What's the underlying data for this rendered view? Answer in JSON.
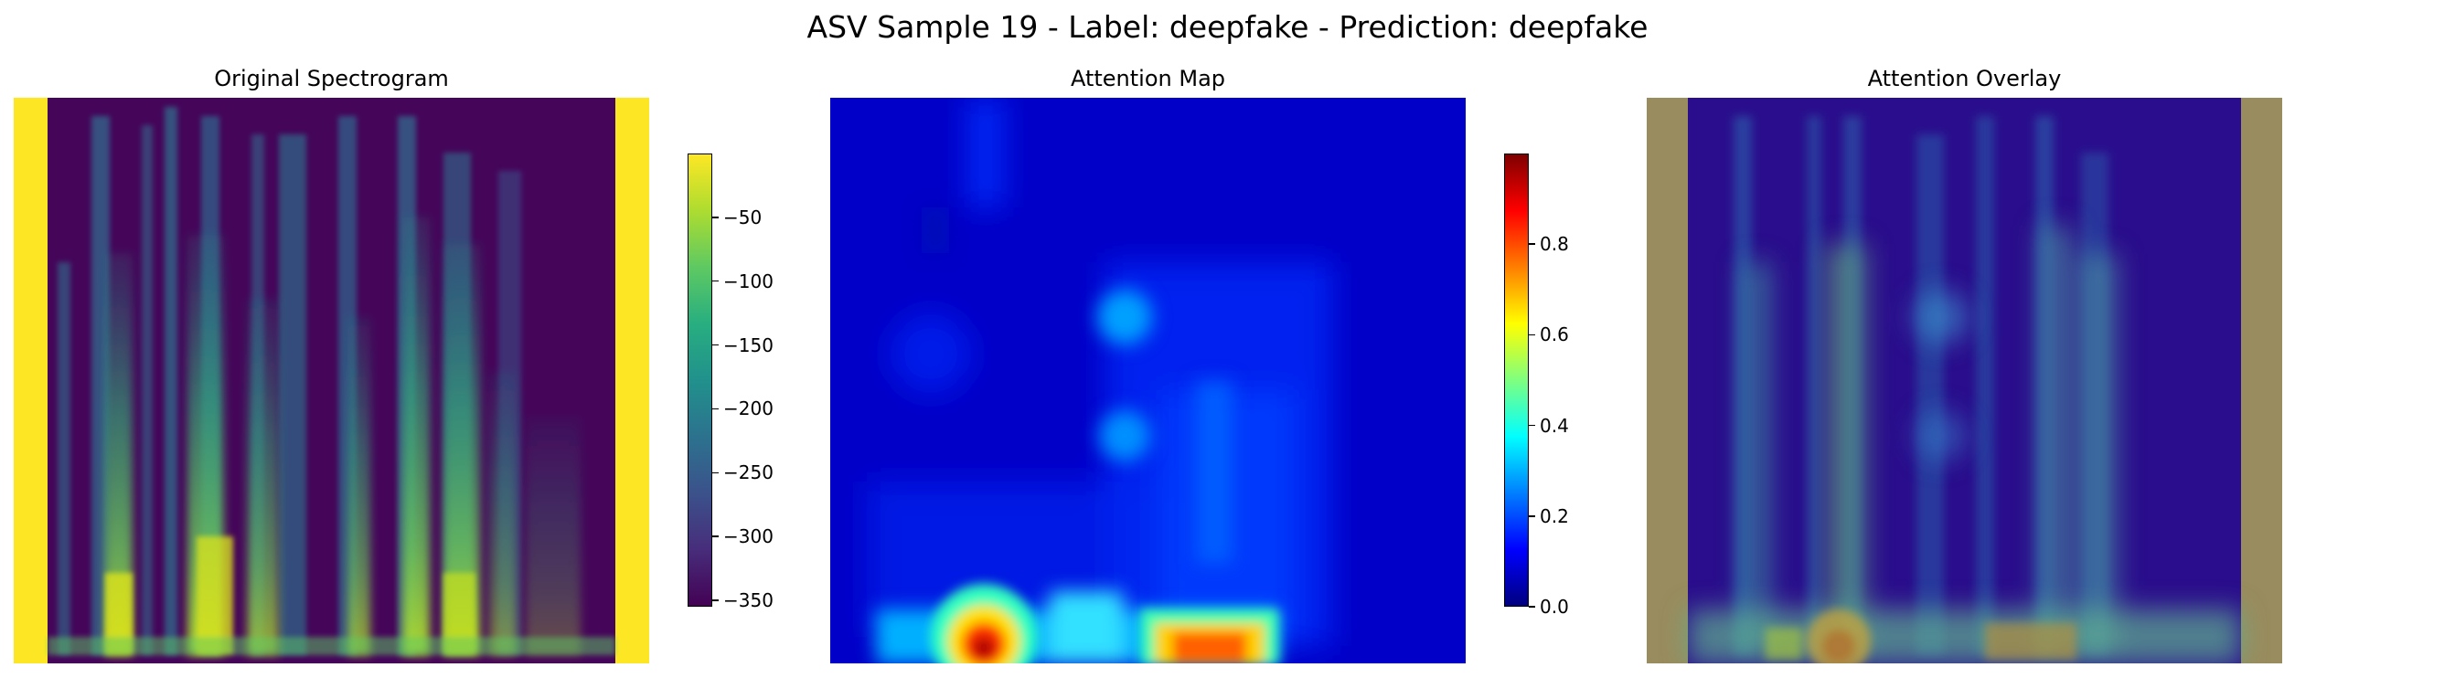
{
  "chart_data": [
    {
      "type": "heatmap",
      "title": "Original Spectrogram",
      "axes": "off",
      "colormap": "viridis",
      "colorbar": {
        "range": [
          -355,
          0
        ],
        "ticks": [
          -50,
          -100,
          -150,
          -200,
          -250,
          -300,
          -350
        ],
        "tick_labels": [
          "−50",
          "−100",
          "−150",
          "−200",
          "−250",
          "−300",
          "−350"
        ]
      }
    },
    {
      "type": "heatmap",
      "title": "Attention Map",
      "axes": "off",
      "colormap": "jet",
      "colorbar": {
        "range": [
          0.0,
          1.0
        ],
        "ticks": [
          0.8,
          0.6,
          0.4,
          0.2,
          0.0
        ],
        "tick_labels": [
          "0.8",
          "0.6",
          "0.4",
          "0.2",
          "0.0"
        ]
      }
    },
    {
      "type": "heatmap",
      "title": "Attention Overlay",
      "axes": "off",
      "colormap": "viridis + jet overlay"
    }
  ],
  "suptitle": "ASV Sample 19 - Label: deepfake - Prediction: deepfake"
}
